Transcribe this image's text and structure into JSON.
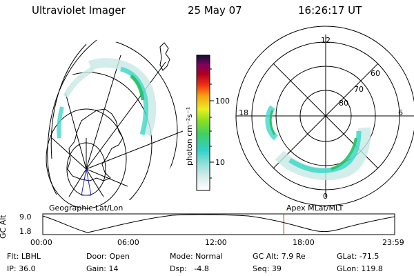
{
  "header": {
    "instrument": "Ultraviolet Imager",
    "date": "25 May 07",
    "time": "16:26:17 UT"
  },
  "geo_panel": {
    "label": "Geographic Lat/Lon"
  },
  "polar_panel": {
    "label": "Apex MLat/MLT",
    "mlt_labels": [
      "12",
      "18",
      "6",
      "0"
    ],
    "lat_labels": [
      "60",
      "70",
      "80"
    ]
  },
  "colorbar": {
    "unit_label": "photon cm⁻²s⁻¹",
    "ticks": [
      "100",
      "10"
    ]
  },
  "timeline": {
    "axis_label": "GC Alt",
    "y_ticks": [
      "9.0",
      "1.8"
    ],
    "x_ticks": [
      "00:00",
      "06:00",
      "12:00",
      "18:00",
      "23:59"
    ],
    "current_time_fraction": 0.685
  },
  "footer": {
    "filter": "Flt: LBHL",
    "ip": "IP: 36.0",
    "door": "Door: Open",
    "gain": "Gain: 14",
    "mode": "Mode: Normal",
    "dsp": "Dsp:   -4.8",
    "gc_alt": "GC Alt: 7.9 Re",
    "seq": "Seq: 39",
    "glat": "GLat: -71.5",
    "glon": "GLon: 119.8"
  },
  "colors": {
    "aurora_light": "#c8e8e6",
    "aurora_mid": "#3fd8c8",
    "aurora_strong": "#22c060",
    "marker": "#d01010",
    "nadir": "#2020c0"
  }
}
